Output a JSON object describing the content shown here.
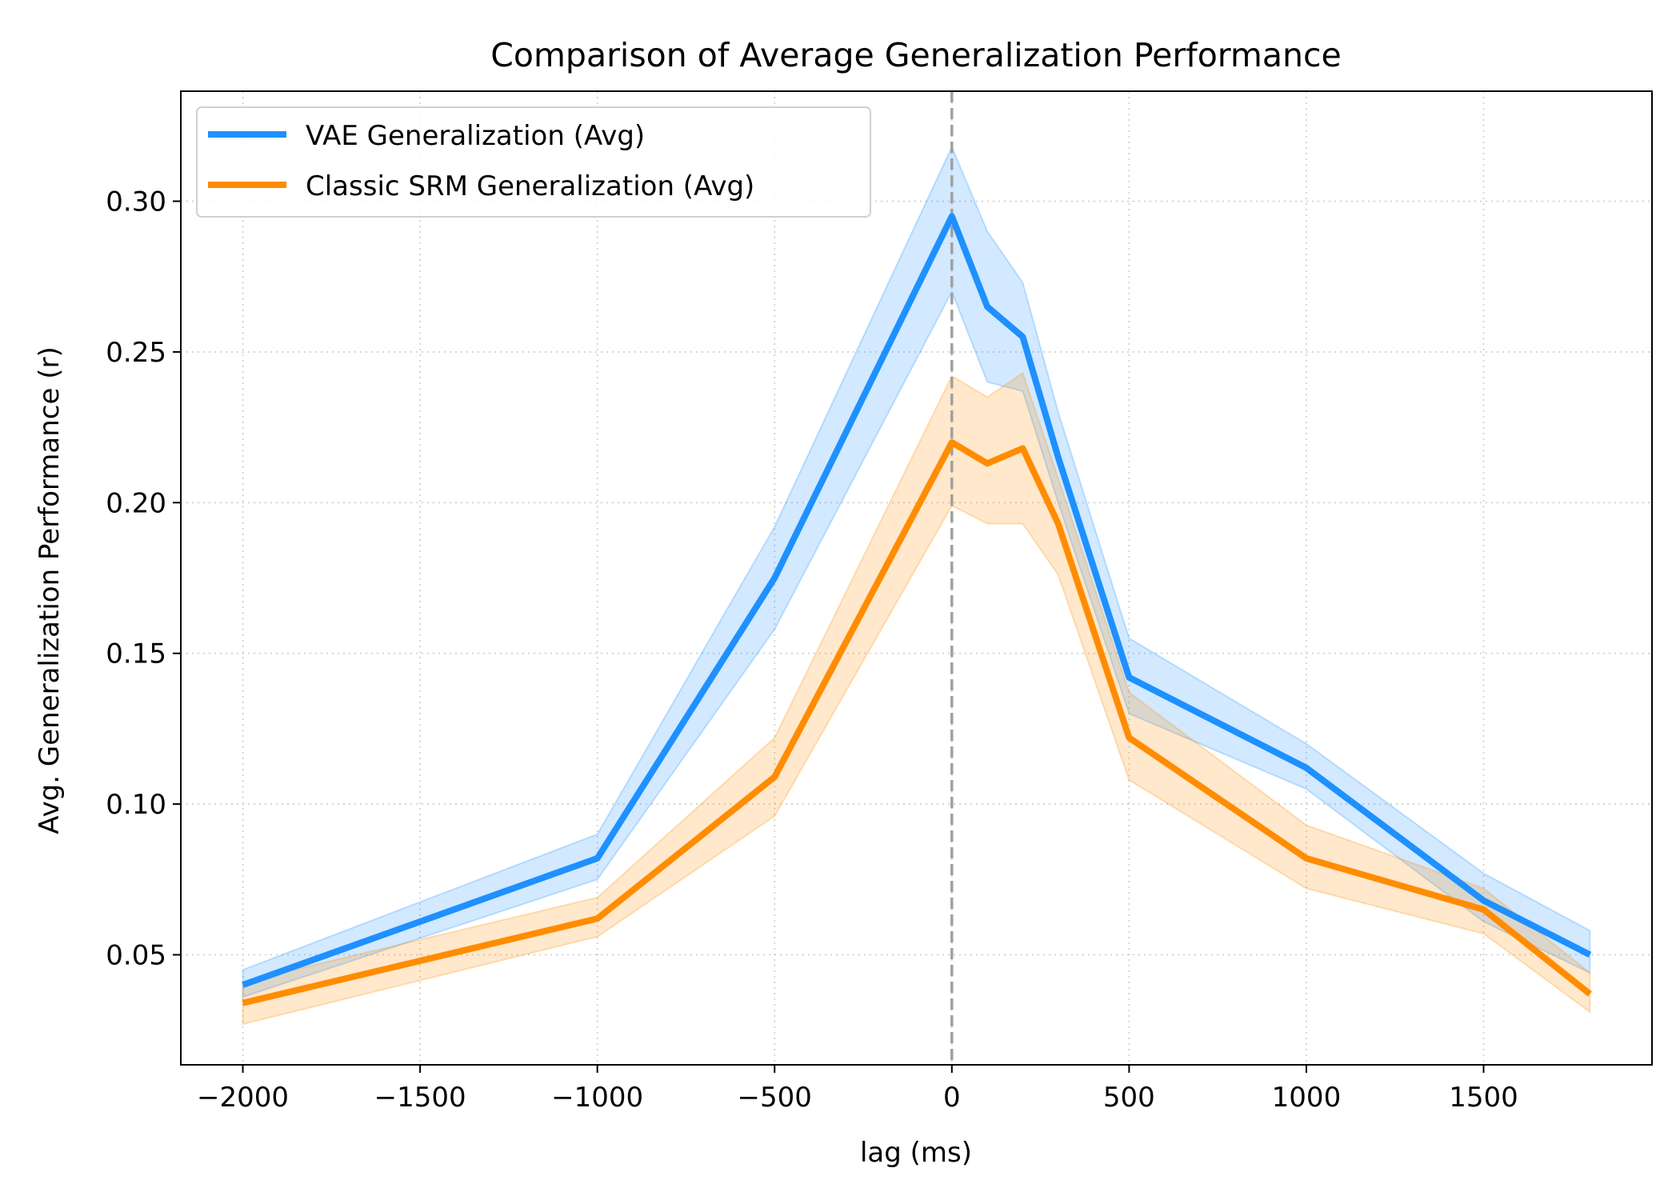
{
  "chart_data": {
    "type": "line",
    "title": "Comparison of Average Generalization Performance",
    "xlabel": "lag (ms)",
    "ylabel": "Avg. Generalization Performance (r)",
    "xlim": [
      -2175,
      1975
    ],
    "ylim": [
      0.0135,
      0.3365
    ],
    "x_ticks": [
      -2000,
      -1500,
      -1000,
      -500,
      0,
      500,
      1000,
      1500
    ],
    "x_tick_labels": [
      "−2000",
      "−1500",
      "−1000",
      "−500",
      "0",
      "500",
      "1000",
      "1500"
    ],
    "y_ticks": [
      0.05,
      0.1,
      0.15,
      0.2,
      0.25,
      0.3
    ],
    "y_tick_labels": [
      "0.05",
      "0.10",
      "0.15",
      "0.20",
      "0.25",
      "0.30"
    ],
    "grid": true,
    "legend_position": "top-left",
    "vline_x": 0,
    "x": [
      -2000,
      -1000,
      -500,
      0,
      100,
      200,
      300,
      500,
      1000,
      1500,
      1800
    ],
    "series": [
      {
        "name": "VAE Generalization (Avg)",
        "color": "#1e90ff",
        "values": [
          0.04,
          0.082,
          0.175,
          0.295,
          0.265,
          0.255,
          0.215,
          0.142,
          0.112,
          0.068,
          0.05
        ],
        "lower": [
          0.036,
          0.075,
          0.158,
          0.27,
          0.24,
          0.237,
          0.2,
          0.13,
          0.105,
          0.061,
          0.044
        ],
        "upper": [
          0.045,
          0.09,
          0.192,
          0.318,
          0.29,
          0.273,
          0.23,
          0.155,
          0.12,
          0.077,
          0.058
        ]
      },
      {
        "name": "Classic SRM Generalization (Avg)",
        "color": "#ff8c00",
        "values": [
          0.034,
          0.062,
          0.109,
          0.22,
          0.213,
          0.218,
          0.193,
          0.122,
          0.082,
          0.065,
          0.037
        ],
        "lower": [
          0.027,
          0.056,
          0.096,
          0.199,
          0.193,
          0.193,
          0.176,
          0.108,
          0.072,
          0.057,
          0.031
        ],
        "upper": [
          0.041,
          0.069,
          0.122,
          0.242,
          0.235,
          0.243,
          0.208,
          0.137,
          0.093,
          0.072,
          0.044
        ]
      }
    ]
  }
}
